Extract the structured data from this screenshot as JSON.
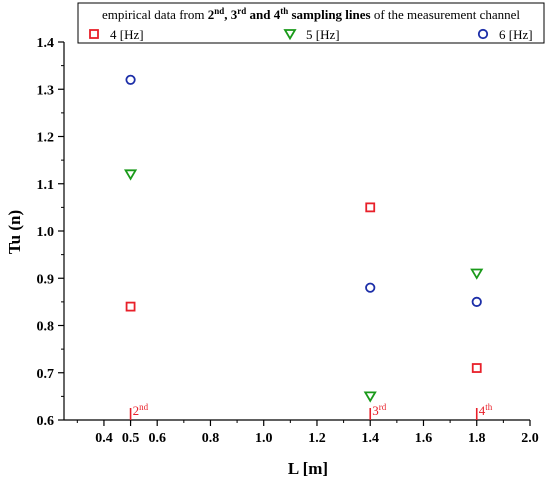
{
  "chart_data": {
    "type": "scatter",
    "title": "",
    "xlabel": "L [m]",
    "ylabel": "Tu (n)",
    "xlim": [
      0.25,
      2.0
    ],
    "ylim": [
      0.6,
      1.4
    ],
    "x_ticks": [
      {
        "v": 0.4,
        "label": "0.4"
      },
      {
        "v": 0.5,
        "label": "0.5"
      },
      {
        "v": 0.6,
        "label": "0.6"
      },
      {
        "v": 0.8,
        "label": "0.8"
      },
      {
        "v": 1.0,
        "label": "1.0"
      },
      {
        "v": 1.2,
        "label": "1.2"
      },
      {
        "v": 1.4,
        "label": "1.4"
      },
      {
        "v": 1.6,
        "label": "1.6"
      },
      {
        "v": 1.8,
        "label": "1.8"
      },
      {
        "v": 2.0,
        "label": "2.0"
      }
    ],
    "y_ticks": [
      {
        "v": 0.6,
        "label": "0.6"
      },
      {
        "v": 0.7,
        "label": "0.7"
      },
      {
        "v": 0.8,
        "label": "0.8"
      },
      {
        "v": 0.9,
        "label": "0.9"
      },
      {
        "v": 1.0,
        "label": "1.0"
      },
      {
        "v": 1.1,
        "label": "1.1"
      },
      {
        "v": 1.2,
        "label": "1.2"
      },
      {
        "v": 1.3,
        "label": "1.3"
      },
      {
        "v": 1.4,
        "label": "1.4"
      }
    ],
    "legend": {
      "placement": "top",
      "header_parts": [
        {
          "text": "empirical data from ",
          "bold": false,
          "sup": false
        },
        {
          "text": "2",
          "bold": true,
          "sup": false
        },
        {
          "text": "nd",
          "bold": true,
          "sup": true
        },
        {
          "text": ", 3",
          "bold": true,
          "sup": false
        },
        {
          "text": "rd",
          "bold": true,
          "sup": true
        },
        {
          "text": " and 4",
          "bold": true,
          "sup": false
        },
        {
          "text": "th",
          "bold": true,
          "sup": true
        },
        {
          "text": " sampling lines",
          "bold": true,
          "sup": false
        },
        {
          "text": " of the measurement channel",
          "bold": false,
          "sup": false
        }
      ]
    },
    "series": [
      {
        "name": "4 [Hz]",
        "marker": "square",
        "color": "#e8202a",
        "points": [
          {
            "x": 0.5,
            "y": 0.84
          },
          {
            "x": 1.4,
            "y": 1.05
          },
          {
            "x": 1.8,
            "y": 0.71
          }
        ]
      },
      {
        "name": "5 [Hz]",
        "marker": "triangle-down",
        "color": "#1a9a1a",
        "points": [
          {
            "x": 0.5,
            "y": 1.12
          },
          {
            "x": 1.4,
            "y": 0.65
          },
          {
            "x": 1.8,
            "y": 0.91
          }
        ]
      },
      {
        "name": "6 [Hz]",
        "marker": "circle",
        "color": "#1c2ea8",
        "points": [
          {
            "x": 0.5,
            "y": 1.32
          },
          {
            "x": 1.4,
            "y": 0.88
          },
          {
            "x": 1.8,
            "y": 0.85
          }
        ]
      }
    ],
    "annotations": [
      {
        "x": 0.5,
        "base": "2",
        "sup": "nd",
        "color": "#e8202a"
      },
      {
        "x": 1.4,
        "base": "3",
        "sup": "rd",
        "color": "#e8202a"
      },
      {
        "x": 1.8,
        "base": "4",
        "sup": "th",
        "color": "#e8202a"
      }
    ]
  }
}
